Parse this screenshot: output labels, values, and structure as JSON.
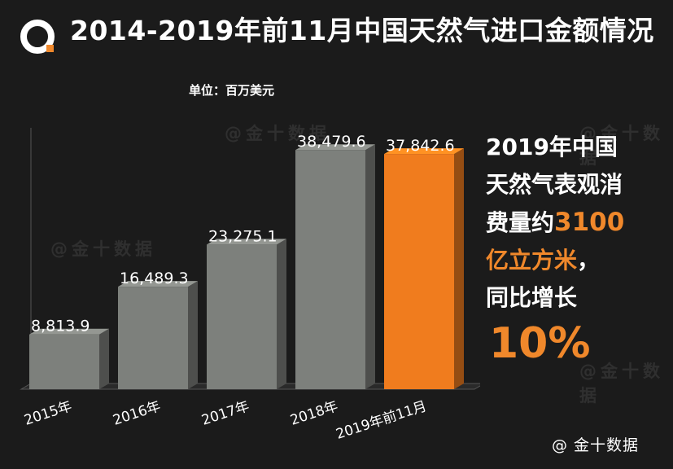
{
  "header": {
    "title": "2014-2019年前11月中国天然气进口金额情况",
    "unit_label": "单位：百万美元"
  },
  "chart_data": {
    "type": "bar",
    "categories": [
      "2015年",
      "2016年",
      "2017年",
      "2018年",
      "2019年前11月"
    ],
    "values": [
      8813.9,
      16489.3,
      23275.1,
      38479.6,
      37842.6
    ],
    "value_labels": [
      "8,813.9",
      "16,489.3",
      "23,275.1",
      "38,479.6",
      "37,842.6"
    ],
    "title": "2014-2019年前11月中国天然气进口金额情况",
    "ylabel": "",
    "xlabel": "",
    "ylim": [
      0,
      41000
    ],
    "highlight_index": 4,
    "colors": {
      "default": "#7d807c",
      "highlight": "#f07c1e"
    },
    "grid": false,
    "legend": "none"
  },
  "sidebar": {
    "line1": "2019年中国",
    "line2": "天然气表观消",
    "line3_prefix": "费量约",
    "line3_value": "3100",
    "line4_value": "亿立方米",
    "line4_suffix": "，",
    "line5": "同比增长",
    "growth": "10%"
  },
  "watermark": {
    "text": "@金十数据"
  },
  "footer": {
    "source": "@ 金十数据"
  },
  "logo": {
    "icon": "jin10-logo-icon"
  }
}
